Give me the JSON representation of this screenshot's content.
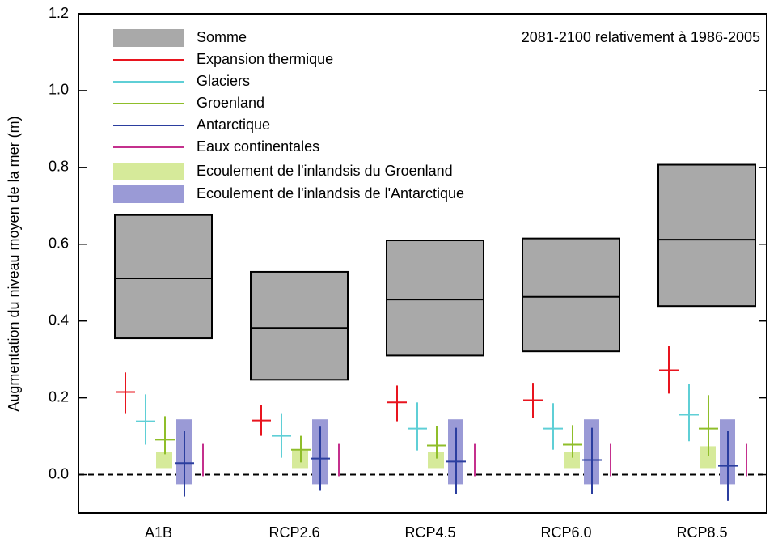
{
  "chart_data": {
    "type": "range",
    "annotation": "2081-2100 relativement à 1986-2005",
    "ylabel": "Augmentation du niveau moyen de la mer (m)",
    "categories": [
      "A1B",
      "RCP2.6",
      "RCP4.5",
      "RCP6.0",
      "RCP8.5"
    ],
    "ylim": [
      -0.1,
      1.2
    ],
    "yticks": [
      {
        "value": 0,
        "label": "0.0"
      },
      0.2,
      0.4,
      0.6,
      0.8,
      {
        "value": 1,
        "label": "1.0"
      },
      1.2
    ],
    "hline": 0,
    "series": [
      {
        "name": "Somme",
        "kind": "box",
        "color": "#a9a9a9",
        "median": [
          0.511,
          0.382,
          0.456,
          0.463,
          0.612
        ],
        "low": [
          0.355,
          0.247,
          0.31,
          0.321,
          0.439
        ],
        "high": [
          0.676,
          0.528,
          0.61,
          0.615,
          0.807
        ]
      },
      {
        "name": "Expansion thermique",
        "kind": "cross",
        "color": "#e8141e",
        "median": [
          0.215,
          0.141,
          0.188,
          0.194,
          0.272
        ],
        "low": [
          0.16,
          0.101,
          0.139,
          0.148,
          0.211
        ],
        "high": [
          0.266,
          0.182,
          0.232,
          0.239,
          0.334
        ]
      },
      {
        "name": "Glaciers",
        "kind": "cross",
        "color": "#5fcfd6",
        "median": [
          0.139,
          0.101,
          0.12,
          0.12,
          0.156
        ],
        "low": [
          0.078,
          0.044,
          0.063,
          0.065,
          0.087
        ],
        "high": [
          0.209,
          0.16,
          0.188,
          0.186,
          0.237
        ]
      },
      {
        "name": "Groenland",
        "kind": "cross",
        "color": "#8fbe2a",
        "median": [
          0.091,
          0.065,
          0.076,
          0.078,
          0.12
        ],
        "low": [
          0.053,
          0.032,
          0.042,
          0.044,
          0.049
        ],
        "high": [
          0.152,
          0.101,
          0.127,
          0.129,
          0.207
        ]
      },
      {
        "name": "Antarctique",
        "kind": "cross",
        "color": "#2b3e9f",
        "median": [
          0.03,
          0.042,
          0.034,
          0.038,
          0.023
        ],
        "low": [
          -0.057,
          -0.042,
          -0.051,
          -0.051,
          -0.068
        ],
        "high": [
          0.114,
          0.125,
          0.122,
          0.122,
          0.114
        ]
      },
      {
        "name": "Eaux continentales",
        "kind": "range",
        "color": "#c4308d",
        "low": [
          -0.004,
          -0.004,
          -0.004,
          -0.004,
          -0.004
        ],
        "high": [
          0.08,
          0.08,
          0.08,
          0.08,
          0.08
        ]
      },
      {
        "name": "Ecoulement de l'inlandsis du Groenland",
        "kind": "bar",
        "color": "#d6ea9a",
        "low": [
          0.017,
          0.017,
          0.017,
          0.017,
          0.017
        ],
        "high": [
          0.059,
          0.063,
          0.059,
          0.059,
          0.074
        ]
      },
      {
        "name": "Ecoulement de l'inlandsis de l'Antarctique",
        "kind": "bar",
        "color": "#9a9ad6",
        "low": [
          -0.025,
          -0.025,
          -0.025,
          -0.025,
          -0.025
        ],
        "high": [
          0.144,
          0.144,
          0.144,
          0.144,
          0.144
        ]
      }
    ]
  }
}
